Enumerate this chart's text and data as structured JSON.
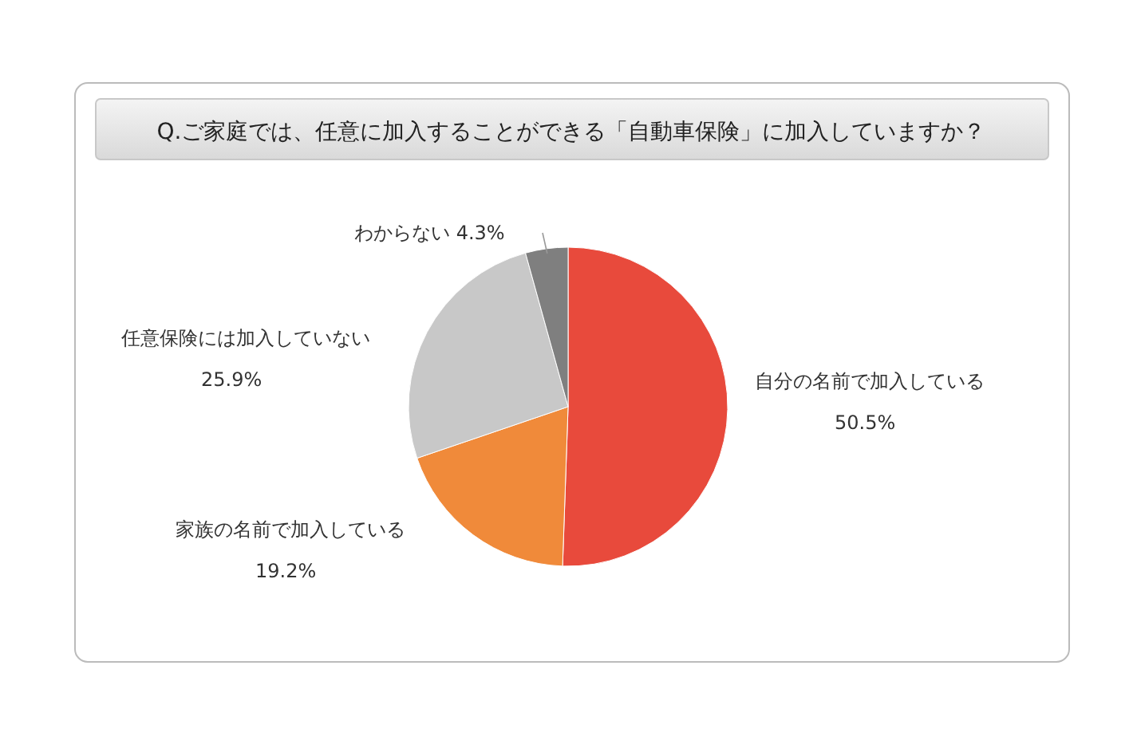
{
  "chart_data": {
    "type": "pie",
    "title": "Q.ご家庭では、任意に加入することができる「自動車保険」に加入していますか？",
    "categories": [
      "自分の名前で加入している",
      "家族の名前で加入している",
      "任意保険には加入していない",
      "わからない"
    ],
    "values": [
      50.5,
      19.2,
      25.9,
      4.3
    ],
    "colors": [
      "#e84a3c",
      "#f08a3a",
      "#c8c8c8",
      "#7f7f7f"
    ],
    "value_labels": [
      "50.5%",
      "19.2%",
      "25.9%",
      "4.3%"
    ]
  }
}
